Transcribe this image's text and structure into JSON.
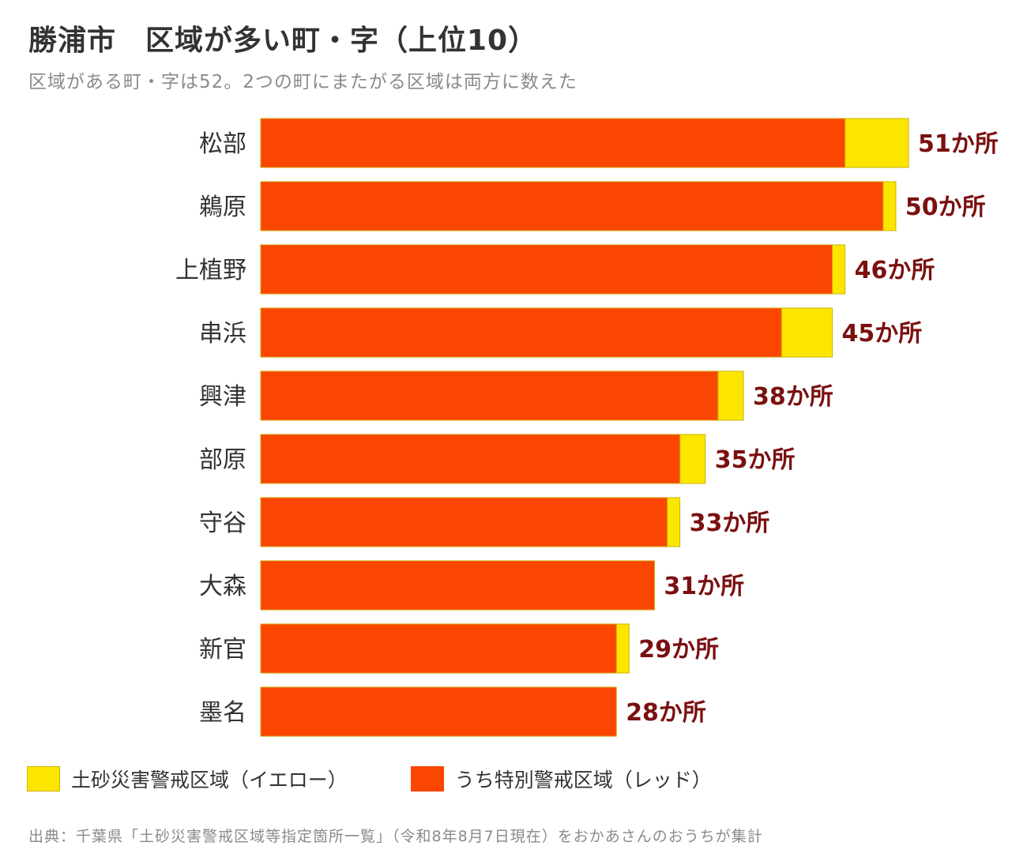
{
  "header": {
    "title": "勝浦市　区域が多い町・字（上位10）",
    "subtitle": "区域がある町・字は52。2つの町にまたがる区域は両方に数えた"
  },
  "chart_data": {
    "type": "bar",
    "orientation": "horizontal",
    "stacked": true,
    "categories": [
      "松部",
      "鵜原",
      "上植野",
      "串浜",
      "興津",
      "部原",
      "守谷",
      "大森",
      "新官",
      "墨名"
    ],
    "series": [
      {
        "name": "うち特別警戒区域（レッド）",
        "color": "#fa4600",
        "values": [
          46,
          49,
          45,
          41,
          36,
          33,
          32,
          31,
          28,
          28
        ]
      },
      {
        "name": "土砂災害警戒区域（イエロー）",
        "color": "#fce600",
        "values": [
          5,
          1,
          1,
          4,
          2,
          2,
          1,
          0,
          1,
          0
        ]
      }
    ],
    "totals": [
      51,
      50,
      46,
      45,
      38,
      35,
      33,
      31,
      29,
      28
    ],
    "value_labels": [
      "51か所",
      "50か所",
      "46か所",
      "45か所",
      "38か所",
      "35か所",
      "33か所",
      "31か所",
      "29か所",
      "28か所"
    ],
    "xlim": [
      0,
      51
    ],
    "grid": false,
    "legend_position": "bottom"
  },
  "legend": {
    "items": [
      {
        "label": "土砂災害警戒区域（イエロー）",
        "color": "#fce600"
      },
      {
        "label": "うち特別警戒区域（レッド）",
        "color": "#fa4600"
      }
    ]
  },
  "footer": {
    "source": "出典：千葉県「土砂災害警戒区域等指定箇所一覧」（令和8年8月7日現在）をおかあさんのおうちが集計"
  }
}
